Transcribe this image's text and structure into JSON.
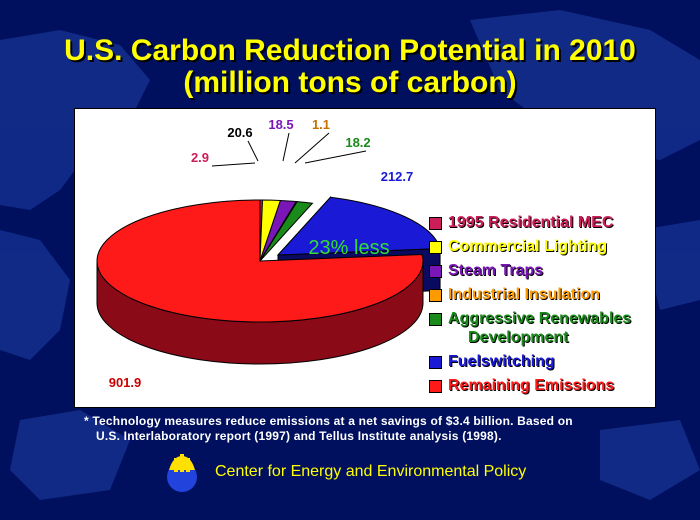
{
  "title_line1": "U.S. Carbon Reduction Potential in 2010",
  "title_line2": "(million tons of carbon)",
  "chart_data": {
    "type": "pie",
    "title": "U.S. Carbon Reduction Potential in 2010 (million tons of carbon)",
    "categories": [
      "1995 Residential MEC",
      "Commercial Lighting",
      "Steam Traps",
      "Industrial Insulation",
      "Aggressive Renewables Development",
      "Fuelswitching",
      "Remaining Emissions"
    ],
    "values": [
      2.9,
      20.6,
      18.5,
      1.1,
      18.2,
      212.7,
      901.9
    ],
    "value_labels": [
      "2.9",
      "20.6",
      "18.5",
      "1.1",
      "18.2",
      "212.7",
      "901.9"
    ],
    "colors": [
      "#cc1f5a",
      "#ffff00",
      "#7a16b8",
      "#ff9a00",
      "#1a8a1a",
      "#1a1ad6",
      "#ff1a1a"
    ],
    "annotation": "23% less",
    "legend_position": "right"
  },
  "legend": [
    {
      "line1": "1995 Residential MEC",
      "line2": "",
      "color": "#cc1f5a"
    },
    {
      "line1": "Commercial Lighting",
      "line2": "",
      "color": "#ffff00"
    },
    {
      "line1": "Steam Traps",
      "line2": "",
      "color": "#7a16b8"
    },
    {
      "line1": "Industrial Insulation",
      "line2": "",
      "color": "#ff9a00"
    },
    {
      "line1": "Aggressive Renewables",
      "line2": "Development",
      "color": "#1a8a1a"
    },
    {
      "line1": "Fuelswitching",
      "line2": "",
      "color": "#1a1ad6"
    },
    {
      "line1": "Remaining Emissions",
      "line2": "",
      "color": "#ff1a1a"
    }
  ],
  "footnote_line1": "* Technology measures reduce emissions at a net savings of $3.4 billion. Based on",
  "footnote_line2": "U.S. Interlaboratory report (1997) and Tellus Institute analysis (1998).",
  "center_name": "Center for Energy and Environmental Policy"
}
